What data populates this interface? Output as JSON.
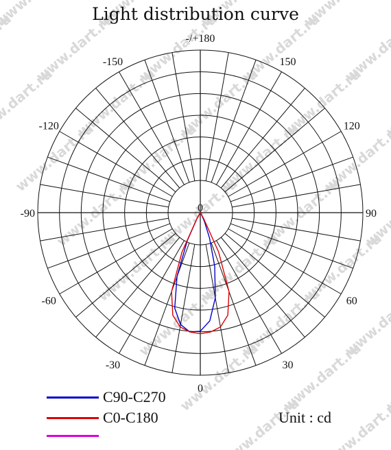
{
  "chart_data": {
    "type": "polar",
    "title": "Light distribution curve",
    "unit_label": "Unit : cd",
    "angle_labels": [
      "-/+180",
      "-150",
      "150",
      "-120",
      "120",
      "-90",
      "90",
      "-60",
      "60",
      "-30",
      "30",
      "0"
    ],
    "center_label": "0",
    "angle_label_values": [
      180,
      -150,
      150,
      -120,
      120,
      -90,
      90,
      -60,
      60,
      -30,
      30,
      0
    ],
    "rings": 6,
    "radial_lines_every_deg": 10,
    "series": [
      {
        "name": "C90-C270",
        "color": "#0000cc",
        "angles": [
          -30,
          -25,
          -20,
          -15,
          -10,
          -5,
          0,
          5,
          10,
          15,
          20,
          25,
          30
        ],
        "values": [
          0.05,
          0.25,
          0.55,
          0.8,
          0.92,
          0.97,
          0.96,
          0.88,
          0.7,
          0.45,
          0.22,
          0.08,
          0.02
        ]
      },
      {
        "name": "C0-C180",
        "color": "#dd0000",
        "angles": [
          -30,
          -25,
          -20,
          -15,
          -10,
          -5,
          0,
          5,
          10,
          15,
          20,
          25,
          30
        ],
        "values": [
          0.05,
          0.35,
          0.68,
          0.86,
          0.94,
          0.97,
          0.98,
          0.97,
          0.94,
          0.86,
          0.68,
          0.35,
          0.05
        ]
      },
      {
        "name": "",
        "color": "#dd00dd",
        "angles": [],
        "values": []
      }
    ]
  },
  "watermark": "www.dart.ru"
}
